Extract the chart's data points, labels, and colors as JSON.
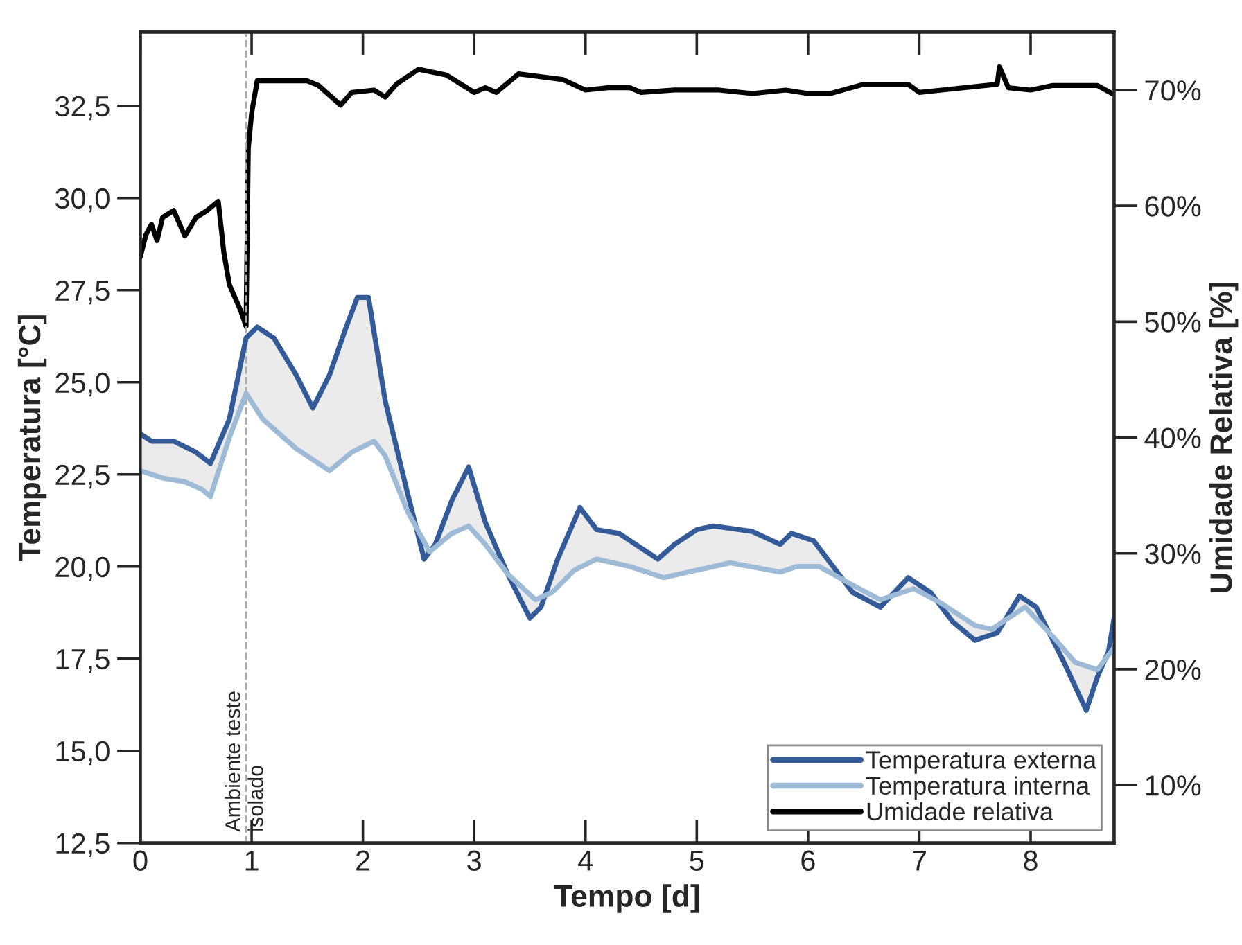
{
  "chart_data": {
    "type": "line",
    "xlabel": "Tempo [d]",
    "ylabel": "Temperatura [°C]",
    "y2label": "Umidade Relativa [%]",
    "xlim": [
      0,
      8.75
    ],
    "xticks": [
      0,
      1,
      2,
      3,
      4,
      5,
      6,
      7,
      8
    ],
    "ylim": [
      12.5,
      34.5
    ],
    "yticks": [
      {
        "value": 12.5,
        "label": "12,5"
      },
      {
        "value": 15,
        "label": "15,0"
      },
      {
        "value": 17.5,
        "label": "17,5"
      },
      {
        "value": 20,
        "label": "20,0"
      },
      {
        "value": 22.5,
        "label": "22,5"
      },
      {
        "value": 25,
        "label": "25,0"
      },
      {
        "value": 27.5,
        "label": "27,5"
      },
      {
        "value": 30,
        "label": "30,0"
      },
      {
        "value": 32.5,
        "label": "32,5"
      }
    ],
    "y2lim": [
      5,
      75
    ],
    "y2ticks": [
      {
        "value": 10,
        "label": "10%"
      },
      {
        "value": 20,
        "label": "20%"
      },
      {
        "value": 30,
        "label": "30%"
      },
      {
        "value": 40,
        "label": "40%"
      },
      {
        "value": 50,
        "label": "50%"
      },
      {
        "value": 60,
        "label": "60%"
      },
      {
        "value": 70,
        "label": "70%"
      }
    ],
    "legend": "bottom right",
    "grid": false,
    "ref_lines": [
      {
        "axis": "x",
        "value": 0.95,
        "label": "Ambiente teste\nisolado",
        "color": "#aaaaaa",
        "line_style": "dashed"
      }
    ],
    "series": [
      {
        "name": "Temperatura externa",
        "color": "#345b99",
        "x": [
          0,
          0.1,
          0.3,
          0.5,
          0.63,
          0.8,
          0.95,
          1.05,
          1.2,
          1.4,
          1.55,
          1.7,
          1.85,
          1.95,
          2.05,
          2.2,
          2.4,
          2.55,
          2.65,
          2.8,
          2.95,
          3.1,
          3.3,
          3.5,
          3.6,
          3.75,
          3.95,
          4.1,
          4.3,
          4.65,
          4.8,
          5.0,
          5.15,
          5.5,
          5.75,
          5.85,
          6.05,
          6.2,
          6.4,
          6.65,
          6.9,
          7.1,
          7.3,
          7.5,
          7.7,
          7.9,
          8.05,
          8.3,
          8.5,
          8.6,
          8.7,
          8.75
        ],
        "values": [
          23.6,
          23.4,
          23.4,
          23.1,
          22.8,
          24.0,
          26.2,
          26.5,
          26.2,
          25.2,
          24.3,
          25.2,
          26.5,
          27.3,
          27.3,
          24.5,
          22.0,
          20.2,
          20.6,
          21.8,
          22.7,
          21.2,
          19.8,
          18.6,
          18.9,
          20.2,
          21.6,
          21.0,
          20.9,
          20.2,
          20.6,
          21.0,
          21.1,
          20.95,
          20.6,
          20.9,
          20.7,
          20.1,
          19.3,
          18.9,
          19.7,
          19.3,
          18.5,
          18.0,
          18.2,
          19.2,
          18.9,
          17.4,
          16.1,
          17.0,
          17.7,
          18.6
        ]
      },
      {
        "name": "Temperatura interna",
        "color": "#9dbbd6",
        "x": [
          0,
          0.2,
          0.4,
          0.55,
          0.63,
          0.8,
          0.95,
          1.1,
          1.4,
          1.7,
          1.9,
          2.1,
          2.2,
          2.4,
          2.6,
          2.8,
          2.95,
          3.1,
          3.3,
          3.55,
          3.7,
          3.9,
          4.1,
          4.4,
          4.7,
          5.0,
          5.3,
          5.75,
          5.9,
          6.1,
          6.4,
          6.65,
          6.95,
          7.2,
          7.5,
          7.65,
          7.95,
          8.2,
          8.4,
          8.6,
          8.75
        ],
        "values": [
          22.6,
          22.4,
          22.3,
          22.1,
          21.9,
          23.5,
          24.7,
          24.0,
          23.2,
          22.6,
          23.1,
          23.4,
          23.0,
          21.5,
          20.4,
          20.9,
          21.1,
          20.6,
          19.8,
          19.1,
          19.3,
          19.9,
          20.2,
          20.0,
          19.7,
          19.9,
          20.1,
          19.85,
          20.0,
          20.0,
          19.5,
          19.1,
          19.4,
          19.0,
          18.4,
          18.3,
          18.9,
          18.1,
          17.4,
          17.2,
          17.8
        ]
      },
      {
        "name": "Umidade relativa",
        "color": "#000000",
        "axis": "y2",
        "x": [
          0,
          0.05,
          0.1,
          0.15,
          0.2,
          0.3,
          0.4,
          0.5,
          0.6,
          0.7,
          0.75,
          0.8,
          0.9,
          0.95,
          0.97,
          1.0,
          1.05,
          1.5,
          1.6,
          1.8,
          1.9,
          2.1,
          2.2,
          2.3,
          2.5,
          2.75,
          3.0,
          3.1,
          3.2,
          3.4,
          3.8,
          4.0,
          4.2,
          4.4,
          4.5,
          4.8,
          5.2,
          5.5,
          5.8,
          6.0,
          6.2,
          6.5,
          6.9,
          7.0,
          7.2,
          7.7,
          7.72,
          7.8,
          8.0,
          8.2,
          8.6,
          8.75
        ],
        "values": [
          55.6,
          57.5,
          58.4,
          57.0,
          59.0,
          59.6,
          57.4,
          59.0,
          59.6,
          60.4,
          56.0,
          53.2,
          51.0,
          49.6,
          65.0,
          68.0,
          70.8,
          70.8,
          70.4,
          68.7,
          69.8,
          70.0,
          69.4,
          70.5,
          71.8,
          71.3,
          69.8,
          70.2,
          69.8,
          71.4,
          70.9,
          70.0,
          70.2,
          70.2,
          69.8,
          70.0,
          70.0,
          69.7,
          70.0,
          69.7,
          69.7,
          70.5,
          70.5,
          69.8,
          70.0,
          70.5,
          72.0,
          70.2,
          70.0,
          70.4,
          70.4,
          69.6
        ]
      }
    ]
  }
}
